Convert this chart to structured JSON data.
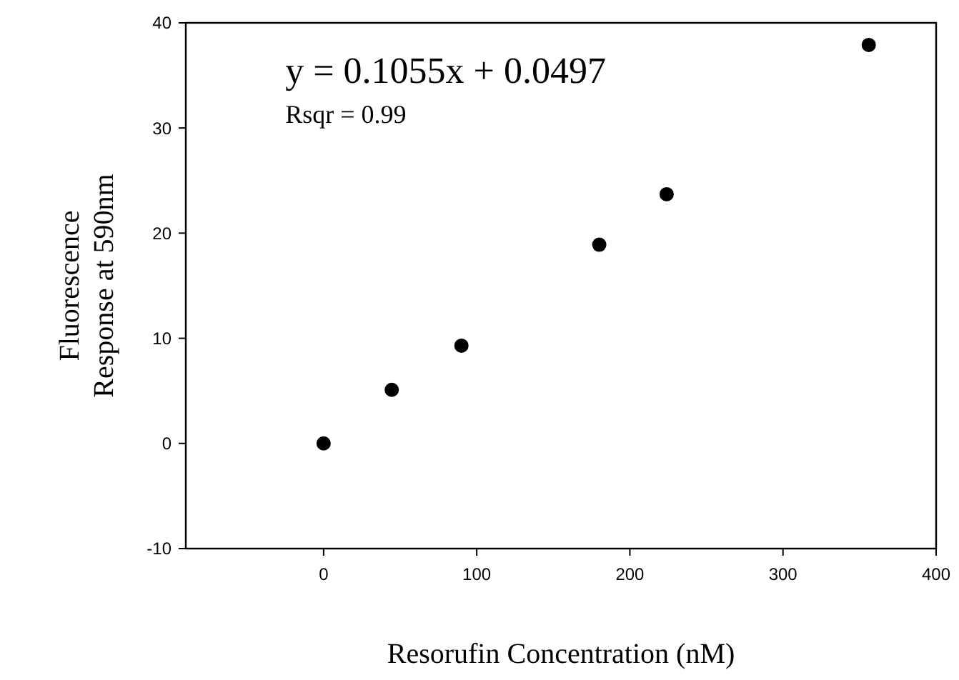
{
  "chart_data": {
    "type": "scatter",
    "xlabel": "Resorufin Concentration (nM)",
    "ylabel": "Fluorescence\nResponse at 590nm",
    "x": [
      0,
      44.5,
      90,
      180,
      224,
      356
    ],
    "series": [
      {
        "color": "#000000",
        "values": [
          0,
          5.1,
          9.3,
          18.9,
          23.7,
          37.9
        ]
      }
    ],
    "xlim": [
      -90,
      400
    ],
    "ylim": [
      -10,
      40
    ],
    "xticks": [
      0,
      100,
      200,
      300,
      400
    ],
    "yticks": [
      -10,
      0,
      10,
      20,
      30,
      40
    ],
    "marker": "circle",
    "annotations": [
      "y = 0.1055x + 0.0497",
      "Rsqr = 0.99"
    ]
  }
}
